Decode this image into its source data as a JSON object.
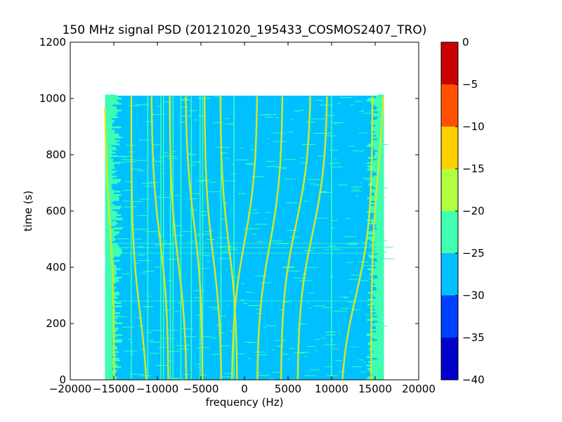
{
  "chart_data": {
    "type": "heatmap",
    "title": "150 MHz signal PSD (20121020_195433_COSMOS2407_TRO)",
    "xlabel": "frequency (Hz)",
    "ylabel": "time (s)",
    "xlim": [
      -20000,
      20000
    ],
    "ylim": [
      0,
      1200
    ],
    "xticks": [
      -20000,
      -15000,
      -10000,
      -5000,
      0,
      5000,
      10000,
      15000,
      20000
    ],
    "yticks": [
      0,
      200,
      400,
      600,
      800,
      1000,
      1200
    ],
    "data_extent": {
      "freq": [
        -16000,
        16000
      ],
      "time": [
        0,
        1010
      ]
    },
    "background_level": -27.5,
    "edge_noise_level": -22.5,
    "colorbar": {
      "levels": [
        -40,
        -35,
        -30,
        -25,
        -20,
        -15,
        -10,
        -5,
        0
      ],
      "ticks": [
        0,
        -5,
        -10,
        -15,
        -20,
        -25,
        -30,
        -35,
        -40
      ],
      "colors": [
        "#0000cd",
        "#0040ff",
        "#00c0ff",
        "#40ffb0",
        "#b0ff40",
        "#ffd000",
        "#ff5000",
        "#cd0000"
      ]
    },
    "vertical_carriers_hz": [
      -13000,
      -11100,
      -9600,
      -9300,
      -8500,
      -8200,
      -7300,
      -6100,
      -5100,
      -4800,
      -2700,
      -1200,
      10000
    ],
    "doppler_tracks": [
      {
        "f_zero_hz": -15500,
        "t_center_s": 580,
        "f_start_hz": -14900,
        "f_end_hz": -16000
      },
      {
        "f_zero_hz": -12000,
        "t_center_s": 240,
        "f_start_hz": -11000,
        "f_end_hz": -13000
      },
      {
        "f_zero_hz": -9700,
        "t_center_s": 500,
        "f_start_hz": -8700,
        "f_end_hz": -10700
      },
      {
        "f_zero_hz": -7600,
        "t_center_s": 420,
        "f_start_hz": -6600,
        "f_end_hz": -8600
      },
      {
        "f_zero_hz": -5800,
        "t_center_s": 560,
        "f_start_hz": -4800,
        "f_end_hz": -6800
      },
      {
        "f_zero_hz": -3600,
        "t_center_s": 440,
        "f_start_hz": -2600,
        "f_end_hz": -4600
      },
      {
        "f_zero_hz": -1800,
        "t_center_s": 480,
        "f_start_hz": -800,
        "f_end_hz": -2800
      },
      {
        "f_zero_hz": 0,
        "t_center_s": 490,
        "f_start_hz": -1000,
        "f_end_hz": 2000
      },
      {
        "f_zero_hz": 2900,
        "t_center_s": 480,
        "f_start_hz": 2000,
        "f_end_hz": 5000
      },
      {
        "f_zero_hz": 5900,
        "t_center_s": 550,
        "f_start_hz": 4500,
        "f_end_hz": 8000
      },
      {
        "f_zero_hz": 7800,
        "t_center_s": 520,
        "f_start_hz": 6500,
        "f_end_hz": 10000
      },
      {
        "f_zero_hz": 12800,
        "t_center_s": 300,
        "f_start_hz": 11000,
        "f_end_hz": 14800
      },
      {
        "f_zero_hz": 15300,
        "t_center_s": 720,
        "f_start_hz": 14500,
        "f_end_hz": 16000
      }
    ],
    "horizontal_artifacts_s": [
      280,
      450,
      470,
      485
    ]
  }
}
